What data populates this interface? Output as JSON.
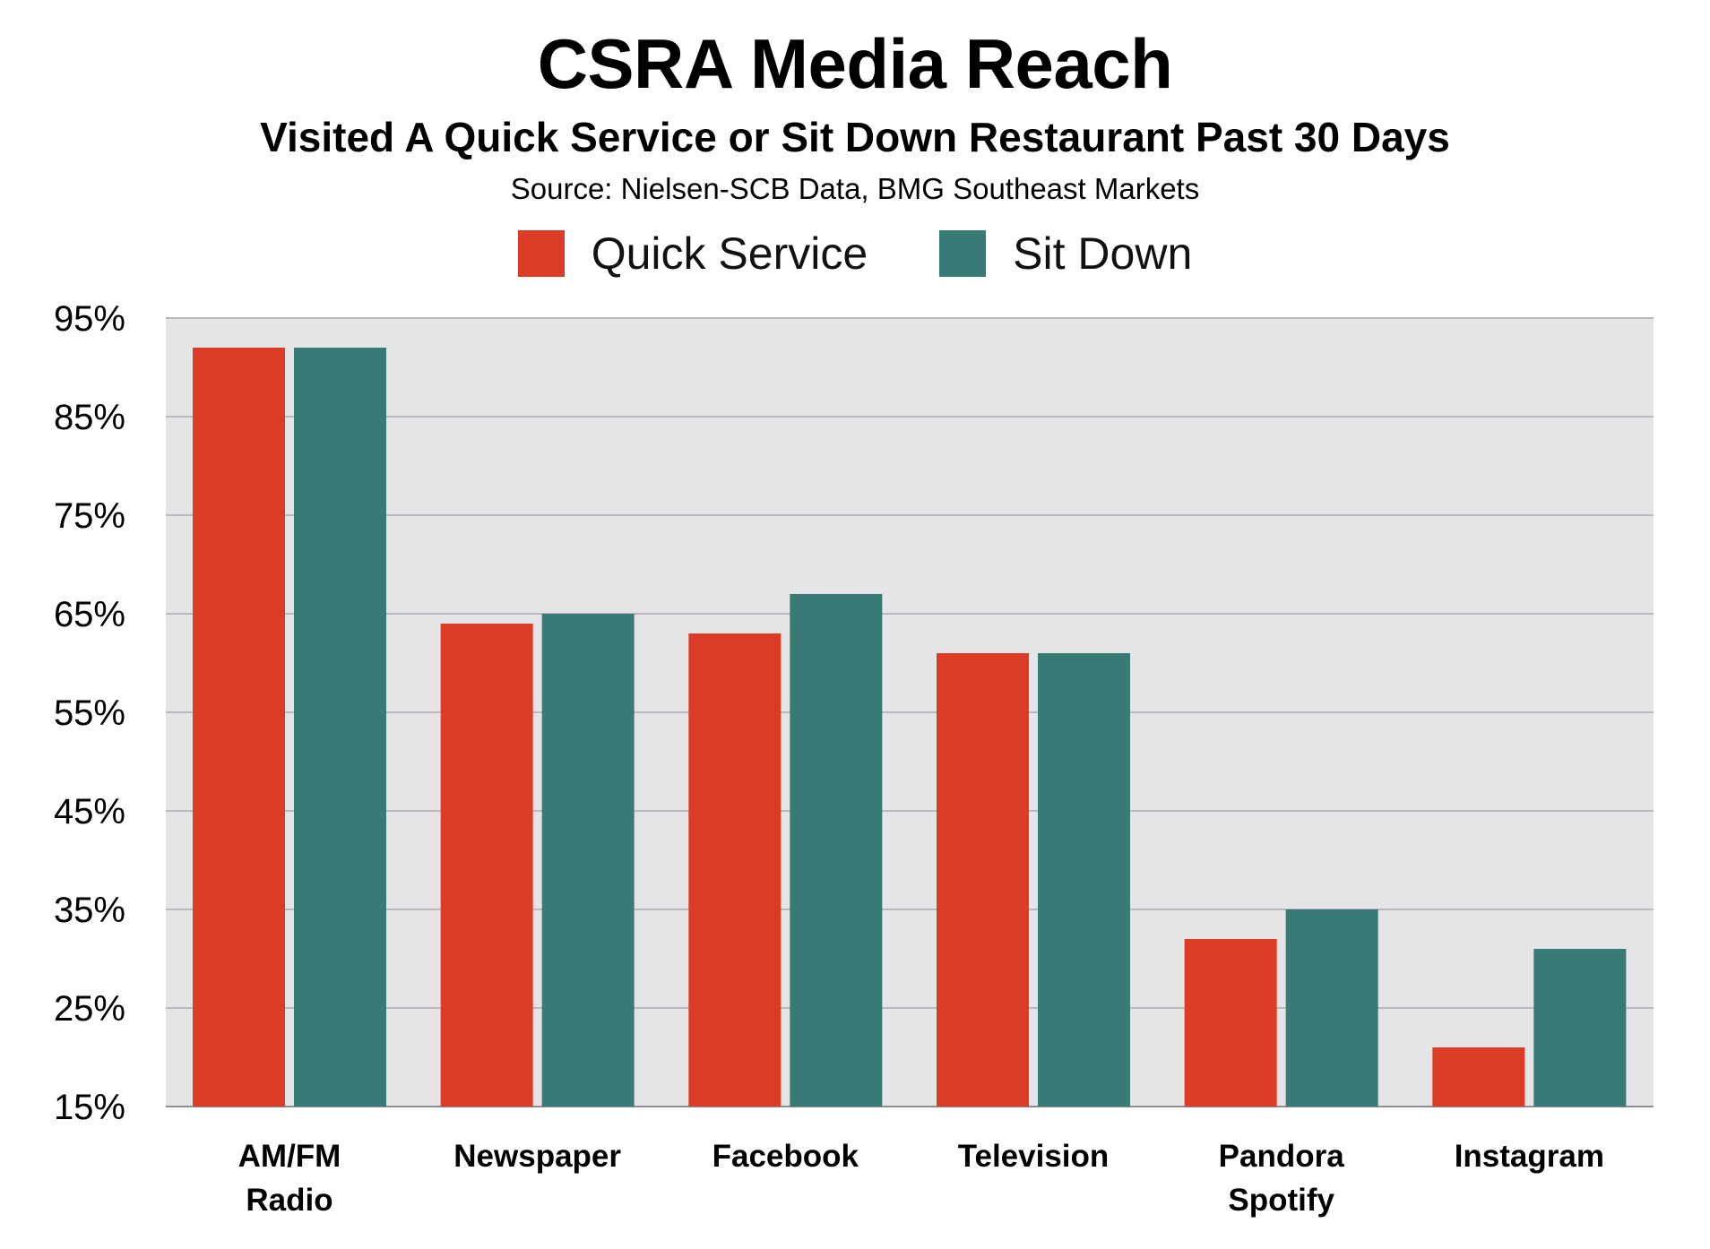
{
  "chart_data": {
    "type": "bar",
    "title": "CSRA Media Reach",
    "subtitle": "Visited A Quick Service or Sit Down Restaurant Past 30 Days",
    "source": "Source: Nielsen-SCB Data, BMG Southeast Markets",
    "categories": [
      [
        "AM/FM",
        "Radio"
      ],
      [
        "Newspaper"
      ],
      [
        "Facebook"
      ],
      [
        "Television"
      ],
      [
        "Pandora",
        "Spotify"
      ],
      [
        "Instagram"
      ]
    ],
    "series": [
      {
        "name": "Quick Service",
        "color": "#DA3C27",
        "values": [
          92,
          64,
          63,
          61,
          32,
          21
        ]
      },
      {
        "name": "Sit Down",
        "color": "#387A75",
        "values": [
          92,
          65,
          67,
          61,
          35,
          31
        ]
      }
    ],
    "ylim": [
      15,
      95
    ],
    "yticks": [
      15,
      25,
      35,
      45,
      55,
      65,
      75,
      85,
      95
    ],
    "ytick_format": "%",
    "xlabel": "",
    "ylabel": "",
    "grid": true,
    "legend": "top-center",
    "plot_background": "#E5E5E8"
  }
}
